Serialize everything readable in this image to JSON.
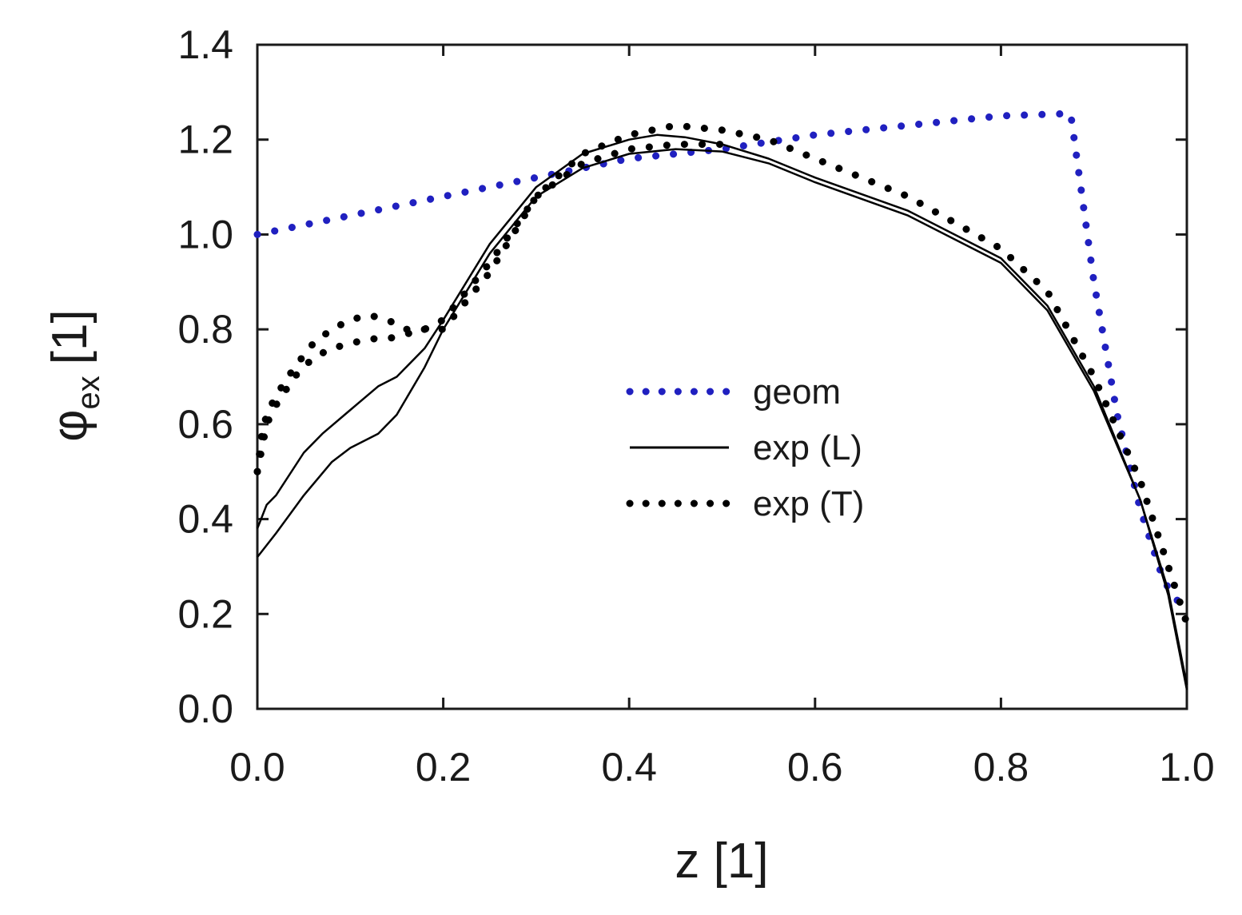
{
  "chart_data": {
    "type": "line",
    "title": "",
    "xlabel": "z [1]",
    "ylabel_main": "φ",
    "ylabel_sub": "ex",
    "ylabel_unit": "[1]",
    "xlim": [
      0,
      1
    ],
    "ylim": [
      0,
      1.4
    ],
    "xticks": [
      "0.0",
      "0.2",
      "0.4",
      "0.6",
      "0.8",
      "1.0"
    ],
    "yticks": [
      "0.0",
      "0.2",
      "0.4",
      "0.6",
      "0.8",
      "1.0",
      "1.2",
      "1.4"
    ],
    "grid": false,
    "legend_position": "center-right",
    "colors": {
      "geom": "#2020c0",
      "exp": "#000000",
      "axis": "#1a1a1a"
    },
    "series": [
      {
        "name": "geom",
        "style": "dotted",
        "x": [
          0.0,
          0.1,
          0.2,
          0.3,
          0.4,
          0.5,
          0.6,
          0.7,
          0.8,
          0.875,
          0.9,
          0.925,
          0.95,
          0.975,
          1.0
        ],
        "y": [
          1.0,
          1.04,
          1.08,
          1.12,
          1.16,
          1.18,
          1.21,
          1.23,
          1.25,
          1.255,
          0.9,
          0.62,
          0.42,
          0.27,
          0.2
        ]
      },
      {
        "name": "exp (L)",
        "style": "solid",
        "x": [
          0.0,
          0.01,
          0.02,
          0.05,
          0.07,
          0.1,
          0.13,
          0.15,
          0.18,
          0.2,
          0.25,
          0.3,
          0.35,
          0.4,
          0.43,
          0.46,
          0.5,
          0.55,
          0.6,
          0.7,
          0.8,
          0.85,
          0.9,
          0.95,
          0.98,
          1.0
        ],
        "y": [
          0.38,
          0.43,
          0.45,
          0.54,
          0.58,
          0.63,
          0.68,
          0.7,
          0.76,
          0.82,
          0.98,
          1.1,
          1.17,
          1.2,
          1.21,
          1.205,
          1.19,
          1.16,
          1.12,
          1.05,
          0.95,
          0.85,
          0.68,
          0.44,
          0.25,
          0.05
        ]
      },
      {
        "name": "exp (L) lower",
        "legend": false,
        "style": "solid",
        "x": [
          0.0,
          0.02,
          0.05,
          0.08,
          0.1,
          0.13,
          0.15,
          0.18,
          0.2,
          0.25,
          0.3,
          0.35,
          0.4,
          0.45,
          0.5,
          0.55,
          0.6,
          0.7,
          0.8,
          0.85,
          0.9,
          0.95,
          0.98,
          1.0
        ],
        "y": [
          0.32,
          0.37,
          0.45,
          0.52,
          0.55,
          0.58,
          0.62,
          0.72,
          0.8,
          0.96,
          1.08,
          1.14,
          1.17,
          1.18,
          1.175,
          1.15,
          1.11,
          1.04,
          0.94,
          0.84,
          0.67,
          0.44,
          0.24,
          0.04
        ]
      },
      {
        "name": "exp (T)",
        "style": "dotted",
        "x": [
          0.0,
          0.005,
          0.01,
          0.02,
          0.04,
          0.06,
          0.08,
          0.1,
          0.12,
          0.14,
          0.16,
          0.18,
          0.2,
          0.25,
          0.3,
          0.35,
          0.4,
          0.45,
          0.5,
          0.55,
          0.6,
          0.7,
          0.8,
          0.85,
          0.9,
          0.95,
          0.98,
          1.0
        ],
        "y": [
          0.5,
          0.58,
          0.62,
          0.66,
          0.72,
          0.77,
          0.8,
          0.82,
          0.83,
          0.82,
          0.8,
          0.8,
          0.8,
          0.92,
          1.08,
          1.17,
          1.21,
          1.23,
          1.22,
          1.2,
          1.16,
          1.08,
          0.97,
          0.88,
          0.7,
          0.48,
          0.3,
          0.18
        ]
      },
      {
        "name": "exp (T) lower",
        "legend": false,
        "style": "dotted",
        "x": [
          0.0,
          0.01,
          0.02,
          0.04,
          0.06,
          0.08,
          0.1,
          0.12,
          0.14,
          0.16,
          0.18,
          0.2,
          0.25,
          0.3,
          0.35,
          0.4,
          0.45,
          0.5
        ],
        "y": [
          0.5,
          0.6,
          0.64,
          0.7,
          0.74,
          0.76,
          0.77,
          0.78,
          0.78,
          0.79,
          0.8,
          0.82,
          0.94,
          1.08,
          1.15,
          1.18,
          1.19,
          1.19
        ]
      }
    ],
    "legend_entries": [
      {
        "label": "geom",
        "style": "dotted",
        "color": "#2020c0"
      },
      {
        "label": "exp (L)",
        "style": "solid",
        "color": "#000000"
      },
      {
        "label": "exp (T)",
        "style": "dotted",
        "color": "#000000"
      }
    ]
  }
}
